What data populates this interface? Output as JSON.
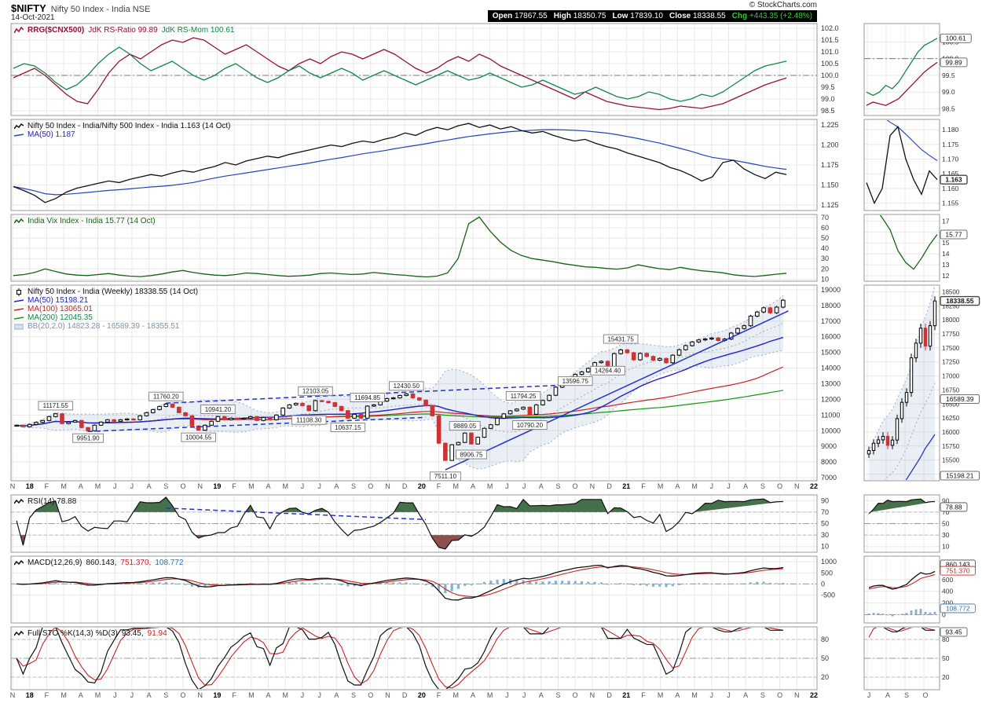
{
  "header": {
    "symbol": "$NIFTY",
    "name": "Nifty 50 Index - India NSE",
    "date": "14-Oct-2021",
    "copyright": "© StockCharts.com",
    "quote": {
      "open_label": "Open",
      "open": "17867.55",
      "high_label": "High",
      "high": "18350.75",
      "low_label": "Low",
      "low": "17839.10",
      "close_label": "Close",
      "close": "18338.55",
      "chg_label": "Chg",
      "chg": "+443.35 (+2.48%)"
    }
  },
  "legends": {
    "rrg": {
      "main": "RRG($CNX500)",
      "ratio": "JdK RS-Ratio 99.89",
      "mom": "JdK RS-Mom 100.61"
    },
    "ratio": {
      "main": "Nifty 50 Index - India/Nifty 500 Index - India 1.163 (14 Oct)",
      "ma": "MA(50) 1.187"
    },
    "vix": {
      "main": "India Vix Index - India 15.77 (14 Oct)"
    },
    "price": {
      "main": "Nifty 50 Index - India (Weekly) 18338.55 (14 Oct)",
      "ma50": "MA(50) 15198.21",
      "ma100": "MA(100) 13065.01",
      "ma200": "MA(200) 12045.35",
      "bb": "BB(20,2.0) 14823.28 - 16589.39 - 18355.51"
    },
    "rsi": {
      "main": "RSI(14) 78.88"
    },
    "macd": {
      "main": "MACD(12,26,9)",
      "v1": "860.143,",
      "v2": "751.370,",
      "v3": "108.772"
    },
    "sto": {
      "main": "Full STO %K(14,3) %D(3)",
      "v1": "93.45,",
      "v2": "91.94"
    }
  },
  "colors": {
    "up_candle": "#000000",
    "down_candle": "#cc3333",
    "ma50": "#2222cc",
    "ma100": "#cc2222",
    "ma200": "#119911",
    "bb": "#97aecd",
    "bb_fill": "rgba(140,160,200,0.18)",
    "rs_ratio": "#991133",
    "rs_mom": "#118844",
    "ratio": "#111111",
    "ratio_ma": "#2244bb",
    "vix": "#116611",
    "rsi": "#111111",
    "rsi_over": "#44704a",
    "rsi_under": "#8d4f4f",
    "macd": "#111111",
    "macd_signal": "#cc2222",
    "macd_hist": "#7fb4d6",
    "sto_k": "#111111",
    "sto_d": "#cc2222",
    "trend": "#2233cc",
    "grid": "#e8e8e8",
    "border": "#999999",
    "axis_text": "#333333"
  },
  "chart_data": {
    "type": "multi-panel-financial-chart",
    "x_labels": [
      "N",
      "18",
      "F",
      "M",
      "A",
      "M",
      "J",
      "J",
      "A",
      "S",
      "O",
      "N",
      "19",
      "F",
      "M",
      "A",
      "M",
      "J",
      "J",
      "A",
      "S",
      "O",
      "N",
      "D",
      "20",
      "F",
      "M",
      "A",
      "M",
      "J",
      "J",
      "A",
      "S",
      "O",
      "N",
      "D",
      "21",
      "F",
      "M",
      "A",
      "M",
      "J",
      "J",
      "A",
      "S",
      "O",
      "N",
      "22"
    ],
    "mini_x_labels": [
      "J",
      "A",
      "S",
      "O"
    ],
    "rrg": {
      "ylim": [
        98.3,
        102.2
      ],
      "yticks": [
        "102.0",
        "101.5",
        "101.0",
        "100.5",
        "100.0",
        "99.5",
        "99.0",
        "98.5"
      ],
      "center": 100,
      "rs_ratio": [
        99.9,
        100.1,
        100.3,
        100.0,
        99.6,
        99.2,
        98.9,
        98.8,
        99.4,
        100.1,
        100.6,
        100.9,
        100.7,
        101.0,
        101.3,
        101.5,
        101.4,
        101.6,
        101.5,
        101.2,
        100.9,
        101.1,
        101.3,
        101.0,
        100.7,
        100.4,
        100.2,
        100.5,
        100.7,
        100.5,
        100.8,
        101.0,
        100.9,
        100.7,
        100.9,
        101.1,
        100.9,
        100.6,
        100.3,
        100.1,
        100.3,
        100.6,
        100.8,
        100.6,
        100.9,
        100.7,
        100.4,
        100.2,
        100.0,
        99.8,
        99.6,
        99.4,
        99.2,
        99.0,
        99.3,
        99.1,
        98.9,
        98.8,
        98.7,
        98.65,
        98.6,
        98.55,
        98.6,
        98.7,
        98.65,
        98.6,
        98.7,
        98.8,
        99.0,
        99.2,
        99.4,
        99.6,
        99.75,
        99.89
      ],
      "rs_mom": [
        100.3,
        100.5,
        100.4,
        100.1,
        99.7,
        99.4,
        99.6,
        100.0,
        100.5,
        100.9,
        101.2,
        100.9,
        100.5,
        100.2,
        100.4,
        100.6,
        100.3,
        100.0,
        99.8,
        100.0,
        100.3,
        100.5,
        100.2,
        99.9,
        99.7,
        99.9,
        100.2,
        100.4,
        100.1,
        99.9,
        100.1,
        100.3,
        100.1,
        99.8,
        100.0,
        100.2,
        100.0,
        99.8,
        99.6,
        99.8,
        100.0,
        100.2,
        100.0,
        99.8,
        99.9,
        100.1,
        99.9,
        99.7,
        99.5,
        99.6,
        99.8,
        99.6,
        99.4,
        99.2,
        99.3,
        99.5,
        99.3,
        99.1,
        99.0,
        99.1,
        99.3,
        99.2,
        99.0,
        98.9,
        99.0,
        99.2,
        99.1,
        99.3,
        99.6,
        99.9,
        100.2,
        100.4,
        100.5,
        100.61
      ],
      "mini": {
        "ylim": [
          98.3,
          101.05
        ],
        "yticks": [
          "100.5",
          "100.0",
          "99.5",
          "99.0",
          "98.5"
        ],
        "slice": 12,
        "badges": [
          {
            "text": "100.61",
            "v": 100.61
          },
          {
            "text": "99.89",
            "v": 99.89
          }
        ]
      }
    },
    "ratio": {
      "ylim": [
        1.118,
        1.232
      ],
      "yticks": [
        "1.225",
        "1.200",
        "1.175",
        "1.150",
        "1.125"
      ],
      "ma_window": 15,
      "values": [
        1.148,
        1.143,
        1.137,
        1.128,
        1.133,
        1.141,
        1.146,
        1.149,
        1.152,
        1.155,
        1.153,
        1.157,
        1.16,
        1.163,
        1.161,
        1.165,
        1.168,
        1.166,
        1.17,
        1.173,
        1.178,
        1.175,
        1.18,
        1.183,
        1.186,
        1.184,
        1.188,
        1.191,
        1.194,
        1.197,
        1.2,
        1.198,
        1.202,
        1.205,
        1.203,
        1.207,
        1.21,
        1.215,
        1.212,
        1.218,
        1.222,
        1.219,
        1.224,
        1.227,
        1.222,
        1.225,
        1.22,
        1.223,
        1.218,
        1.215,
        1.217,
        1.212,
        1.208,
        1.205,
        1.207,
        1.202,
        1.198,
        1.195,
        1.19,
        1.186,
        1.182,
        1.178,
        1.172,
        1.168,
        1.162,
        1.155,
        1.16,
        1.178,
        1.181,
        1.17,
        1.163,
        1.158,
        1.166,
        1.163
      ],
      "mini": {
        "ylim": [
          1.1525,
          1.1835
        ],
        "yticks": [
          "1.180",
          "1.175",
          "1.170",
          "1.165",
          "1.160",
          "1.155"
        ],
        "slice": 10,
        "badges": [
          {
            "text": "1.163",
            "v": 1.163,
            "bold": true
          }
        ]
      }
    },
    "vix": {
      "ylim": [
        8,
        73
      ],
      "yticks": [
        "70",
        "60",
        "50",
        "40",
        "30",
        "20",
        "10"
      ],
      "values": [
        13.5,
        14.5,
        16.5,
        20.0,
        17.5,
        15.0,
        14.0,
        13.5,
        14.5,
        15.5,
        14.0,
        13.0,
        12.5,
        13.5,
        15.0,
        17.0,
        18.5,
        16.5,
        15.0,
        14.0,
        13.5,
        14.5,
        16.0,
        15.5,
        14.5,
        13.5,
        12.8,
        13.2,
        14.0,
        15.5,
        16.0,
        15.2,
        14.6,
        15.0,
        16.5,
        15.5,
        14.5,
        13.8,
        12.8,
        12.2,
        13.0,
        16.0,
        30.0,
        64.0,
        70.5,
        57.0,
        46.0,
        38.0,
        33.0,
        30.0,
        28.5,
        27.0,
        25.0,
        23.5,
        22.0,
        21.5,
        20.5,
        19.8,
        21.0,
        24.0,
        22.0,
        20.2,
        19.3,
        21.5,
        19.6,
        18.2,
        17.3,
        16.2,
        14.3,
        13.2,
        12.6,
        13.6,
        14.8,
        15.77
      ],
      "mini": {
        "ylim": [
          11.5,
          17.6
        ],
        "yticks": [
          "17",
          "16",
          "15",
          "14",
          "13",
          "12"
        ],
        "slice": 10,
        "badges": [
          {
            "text": "15.77",
            "v": 15.77
          }
        ]
      }
    },
    "price": {
      "ylim": [
        6800,
        19300
      ],
      "yticks": [
        "19000",
        "18000",
        "17000",
        "16000",
        "15000",
        "14000",
        "13000",
        "12000",
        "11000",
        "10000",
        "9000",
        "8000",
        "7000"
      ],
      "bb_window": 13,
      "bb_mult": 2,
      "ma_windows": [
        25,
        50,
        100
      ],
      "closes": [
        10350,
        10250,
        10400,
        10530,
        10650,
        10900,
        11080,
        10450,
        10550,
        10650,
        10200,
        10000,
        10350,
        10550,
        10700,
        10600,
        10700,
        10750,
        10700,
        10950,
        11150,
        11350,
        11550,
        11700,
        11500,
        11150,
        10950,
        10300,
        10030,
        10350,
        10600,
        10900,
        10700,
        10800,
        10750,
        10800,
        10900,
        10650,
        10850,
        10700,
        11000,
        11450,
        11650,
        11750,
        11600,
        11280,
        11920,
        11870,
        11790,
        11550,
        11280,
        10800,
        11050,
        10800,
        11570,
        11650,
        11890,
        12050,
        12100,
        12250,
        12350,
        12100,
        11950,
        11600,
        10950,
        9200,
        8100,
        9100,
        9250,
        9850,
        9150,
        9580,
        10150,
        10380,
        10800,
        11075,
        11270,
        11380,
        11500,
        11050,
        11650,
        11930,
        12263,
        12780,
        12969,
        13258,
        13596,
        13760,
        13981,
        14347,
        14433,
        13634,
        14924,
        15163,
        14981,
        14529,
        14938,
        14744,
        14507,
        14617,
        14341,
        14823,
        15175,
        15436,
        15670,
        15799,
        15860,
        15923,
        15763,
        15856,
        16238,
        16529,
        16705,
        17323,
        17585,
        17853,
        17532,
        17896,
        18338.55
      ],
      "annotations": [
        {
          "i": 6,
          "text": "11171.55",
          "pos": "above"
        },
        {
          "i": 11,
          "text": "9951.90",
          "pos": "below"
        },
        {
          "i": 23,
          "text": "11760.20",
          "pos": "above"
        },
        {
          "i": 28,
          "text": "10004.55",
          "pos": "below"
        },
        {
          "i": 31,
          "text": "10941.20",
          "pos": "above"
        },
        {
          "i": 45,
          "text": "11108.30",
          "pos": "below"
        },
        {
          "i": 46,
          "text": "12103.05",
          "pos": "above"
        },
        {
          "i": 51,
          "text": "10637.15",
          "pos": "below"
        },
        {
          "i": 54,
          "text": "11694.85",
          "pos": "above"
        },
        {
          "i": 60,
          "text": "12430.50",
          "pos": "above"
        },
        {
          "i": 66,
          "text": "7511.10",
          "pos": "below"
        },
        {
          "i": 69,
          "text": "9889.05",
          "pos": "above"
        },
        {
          "i": 70,
          "text": "8906.75",
          "pos": "below"
        },
        {
          "i": 78,
          "text": "11794.25",
          "pos": "above"
        },
        {
          "i": 79,
          "text": "10790.20",
          "pos": "below"
        },
        {
          "i": 86,
          "text": "13596.75",
          "pos": "below"
        },
        {
          "i": 91,
          "text": "14264.40",
          "pos": "below"
        },
        {
          "i": 93,
          "text": "15431.75",
          "pos": "above"
        }
      ],
      "trendlines": [
        {
          "i1": 23,
          "v1": 11760,
          "i2": 86,
          "v2": 12950,
          "dash": true
        },
        {
          "i1": 11,
          "v1": 9951,
          "i2": 63,
          "v2": 10850,
          "dash": true
        },
        {
          "i1": 66,
          "v1": 7500,
          "i2": 118.8,
          "v2": 17650,
          "dash": false
        }
      ],
      "mini": {
        "ylim": [
          15130,
          18620
        ],
        "yticks": [
          "18500",
          "18250",
          "18000",
          "17750",
          "17500",
          "17250",
          "17000",
          "16750",
          "16500",
          "16250",
          "16000",
          "15750",
          "15500",
          "15250"
        ],
        "slice": 15,
        "badges": [
          {
            "text": "18338.55",
            "v": 18338.55,
            "bold": true
          },
          {
            "text": "16589.39",
            "v": 16589.39
          },
          {
            "text": "15198.21",
            "v": 15198.21
          }
        ]
      }
    },
    "rsi": {
      "window": 8,
      "ylim": [
        0,
        100
      ],
      "yticks": [
        "90",
        "70",
        "50",
        "30",
        "10"
      ],
      "bands": [
        70,
        30
      ],
      "center": 50,
      "trendline": {
        "i1": 23,
        "v1": 77,
        "i2": 63,
        "v2": 57
      },
      "mini": {
        "ylim": [
          0,
          100
        ],
        "yticks": [
          "90",
          "70",
          "50",
          "30",
          "10"
        ],
        "slice": 15,
        "badges": [
          {
            "text": "78.88",
            "v": 78.88
          }
        ]
      }
    },
    "macd": {
      "fast": 7,
      "slow": 15,
      "signal": 5,
      "ylim": [
        -1750,
        1250
      ],
      "yticks": [
        "1000",
        "500",
        "0",
        "-500"
      ],
      "mini": {
        "ylim": [
          -140,
          1000
        ],
        "yticks": [
          "600",
          "400",
          "200",
          "0"
        ],
        "slice": 15,
        "badges": [
          {
            "text": "860.143",
            "v": 860
          },
          {
            "text": "751.370",
            "v": 751,
            "color": "#cc2222"
          },
          {
            "text": "108.772",
            "v": 108.772,
            "color": "#336f9e"
          }
        ]
      }
    },
    "sto": {
      "window": 8,
      "ylim": [
        0,
        100
      ],
      "yticks": [
        "80",
        "50",
        "20"
      ],
      "bands": [
        80,
        20
      ],
      "center": 50,
      "mini": {
        "ylim": [
          0,
          100
        ],
        "yticks": [
          "80",
          "50",
          "20"
        ],
        "slice": 15,
        "badges": [
          {
            "text": "93.45",
            "v": 93.45
          }
        ]
      }
    }
  }
}
